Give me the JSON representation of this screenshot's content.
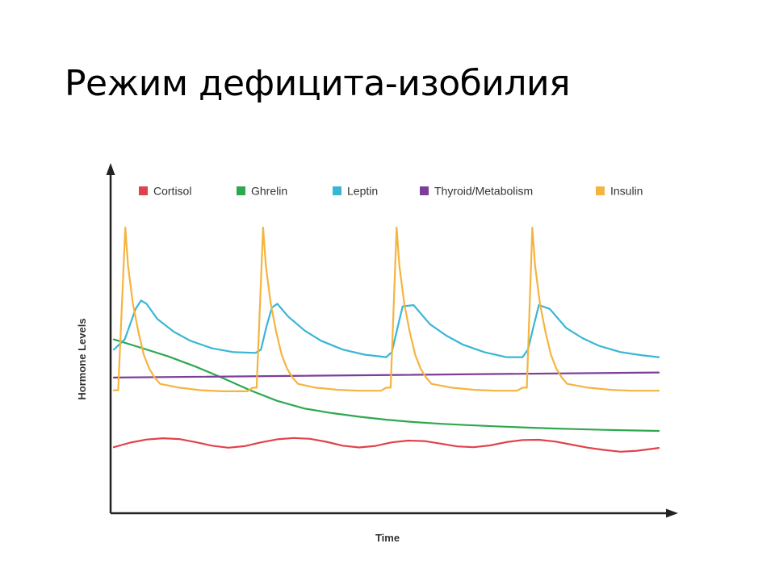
{
  "slide": {
    "title": "Режим дефицита-изобилия"
  },
  "chart_data": {
    "type": "line",
    "title": "",
    "xlabel": "Time",
    "ylabel": "Hormone Levels",
    "xlim": [
      0,
      100
    ],
    "ylim": [
      0,
      100
    ],
    "grid": false,
    "legend": {
      "position": "top"
    },
    "series": [
      {
        "name": "Cortisol",
        "color": "#e0424b",
        "x": [
          0,
          3,
          6,
          9,
          12,
          15,
          18,
          21,
          24,
          27,
          30,
          33,
          36,
          39,
          42,
          45,
          48,
          51,
          54,
          57,
          60,
          63,
          66,
          69,
          72,
          75,
          78,
          81,
          84,
          87,
          90,
          93,
          96,
          99,
          100
        ],
        "y": [
          13.6,
          15.4,
          16.6,
          17.1,
          16.8,
          15.6,
          14.2,
          13.4,
          14.0,
          15.5,
          16.7,
          17.2,
          16.9,
          15.7,
          14.2,
          13.5,
          14.1,
          15.5,
          16.2,
          16.0,
          15.0,
          13.9,
          13.6,
          14.3,
          15.6,
          16.4,
          16.5,
          15.8,
          14.6,
          13.4,
          12.5,
          11.8,
          12.2,
          13.0,
          13.3
        ]
      },
      {
        "name": "Ghrelin",
        "color": "#2ea84e",
        "x": [
          0,
          5,
          10,
          15,
          20,
          25,
          30,
          35,
          40,
          45,
          50,
          55,
          60,
          65,
          70,
          75,
          80,
          85,
          90,
          95,
          100
        ],
        "y": [
          56.0,
          52.7,
          49.3,
          45.3,
          40.8,
          36.0,
          31.8,
          28.8,
          27.0,
          25.6,
          24.4,
          23.5,
          22.8,
          22.3,
          21.8,
          21.4,
          21.0,
          20.7,
          20.4,
          20.2,
          20.0
        ]
      },
      {
        "name": "Leptin",
        "color": "#39b6d6",
        "x": [
          0,
          2,
          4,
          5,
          6,
          8,
          11,
          14,
          18,
          22,
          26,
          27,
          28,
          29,
          30,
          32,
          35,
          38,
          42,
          46,
          50,
          51,
          52,
          53,
          55,
          58,
          61,
          64,
          68,
          72,
          75,
          76,
          77,
          78,
          80,
          83,
          86,
          89,
          93,
          97,
          100
        ],
        "y": [
          52.0,
          56.0,
          68.0,
          71.3,
          70.0,
          64.0,
          59.0,
          55.5,
          52.5,
          51.0,
          50.7,
          52.0,
          61.0,
          68.5,
          70.0,
          65.0,
          59.5,
          55.5,
          52.0,
          50.0,
          49.0,
          51.0,
          60.0,
          69.0,
          69.5,
          62.0,
          57.5,
          54.0,
          51.0,
          49.0,
          49.0,
          52.0,
          61.0,
          69.5,
          68.0,
          60.5,
          56.5,
          53.5,
          51.0,
          49.7,
          49.0
        ]
      },
      {
        "name": "Thyroid/Metabolism",
        "color": "#7c3f98",
        "x": [
          0,
          100
        ],
        "y": [
          41.0,
          43.0
        ]
      },
      {
        "name": "Insulin",
        "color": "#f5b43f",
        "x": [
          0,
          0.8,
          2.1,
          2.6,
          3.5,
          4.5,
          5.5,
          6.5,
          7.5,
          8.5,
          12,
          16,
          20,
          24.5,
          25.5,
          26.2,
          27.4,
          27.9,
          28.8,
          29.8,
          30.8,
          31.8,
          32.8,
          33.8,
          37,
          41,
          45,
          49,
          50,
          50.8,
          51.9,
          52.4,
          53.3,
          54.3,
          55.3,
          56.3,
          57.3,
          58.3,
          62,
          66,
          70,
          74,
          75,
          75.8,
          76.8,
          77.3,
          78.2,
          79.2,
          80.2,
          81.2,
          82.2,
          83.2,
          87,
          91,
          95,
          99,
          100
        ],
        "y": [
          36.0,
          36.0,
          100.0,
          85.0,
          70.0,
          59.0,
          50.0,
          44.5,
          41.0,
          38.5,
          37.0,
          36.0,
          35.6,
          35.6,
          37.0,
          37.0,
          100.0,
          85.0,
          70.0,
          59.0,
          50.0,
          44.5,
          41.0,
          38.5,
          37.0,
          36.2,
          35.8,
          35.8,
          37.0,
          37.0,
          100.0,
          85.0,
          70.0,
          59.0,
          50.0,
          44.5,
          41.0,
          38.5,
          37.0,
          36.2,
          35.8,
          35.8,
          37.0,
          37.0,
          100.0,
          85.0,
          70.0,
          59.0,
          50.0,
          44.5,
          41.0,
          38.5,
          37.0,
          36.2,
          35.8,
          35.8,
          35.8
        ]
      }
    ]
  }
}
